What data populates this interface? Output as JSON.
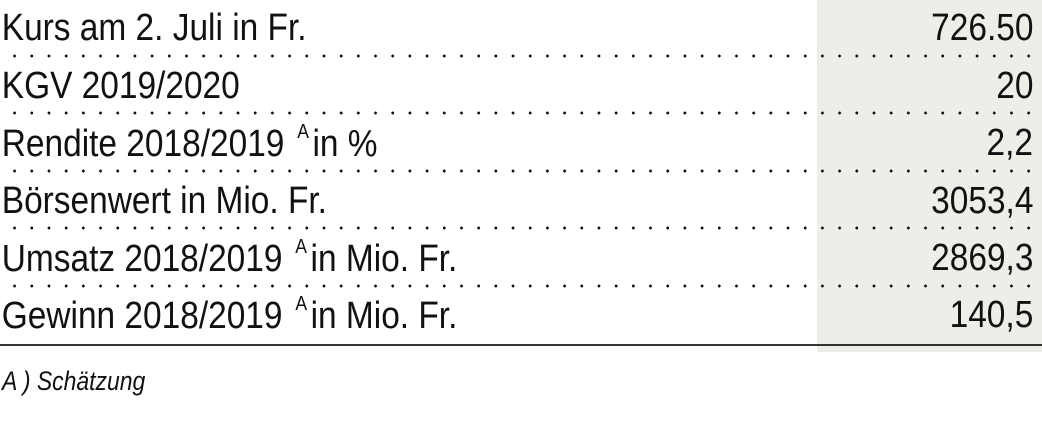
{
  "rows": [
    {
      "label": "Kurs am 2. Juli in Fr.",
      "sup": "",
      "suffix": "",
      "value": "726.50"
    },
    {
      "label": "KGV 2019/2020",
      "sup": "",
      "suffix": "",
      "value": "20"
    },
    {
      "label": "Rendite 2018/2019",
      "sup": "A",
      "suffix": "in %",
      "value": "2,2"
    },
    {
      "label": "Börsenwert in Mio. Fr.",
      "sup": "",
      "suffix": "",
      "value": "3053,4"
    },
    {
      "label": "Umsatz 2018/2019",
      "sup": "A",
      "suffix": "in Mio. Fr.",
      "value": "2869,3"
    },
    {
      "label": "Gewinn 2018/2019",
      "sup": "A",
      "suffix": "in Mio. Fr.",
      "value": "140,5"
    }
  ],
  "footnote": "A ) Schätzung",
  "colors": {
    "value_column_bg": "#efede8"
  }
}
